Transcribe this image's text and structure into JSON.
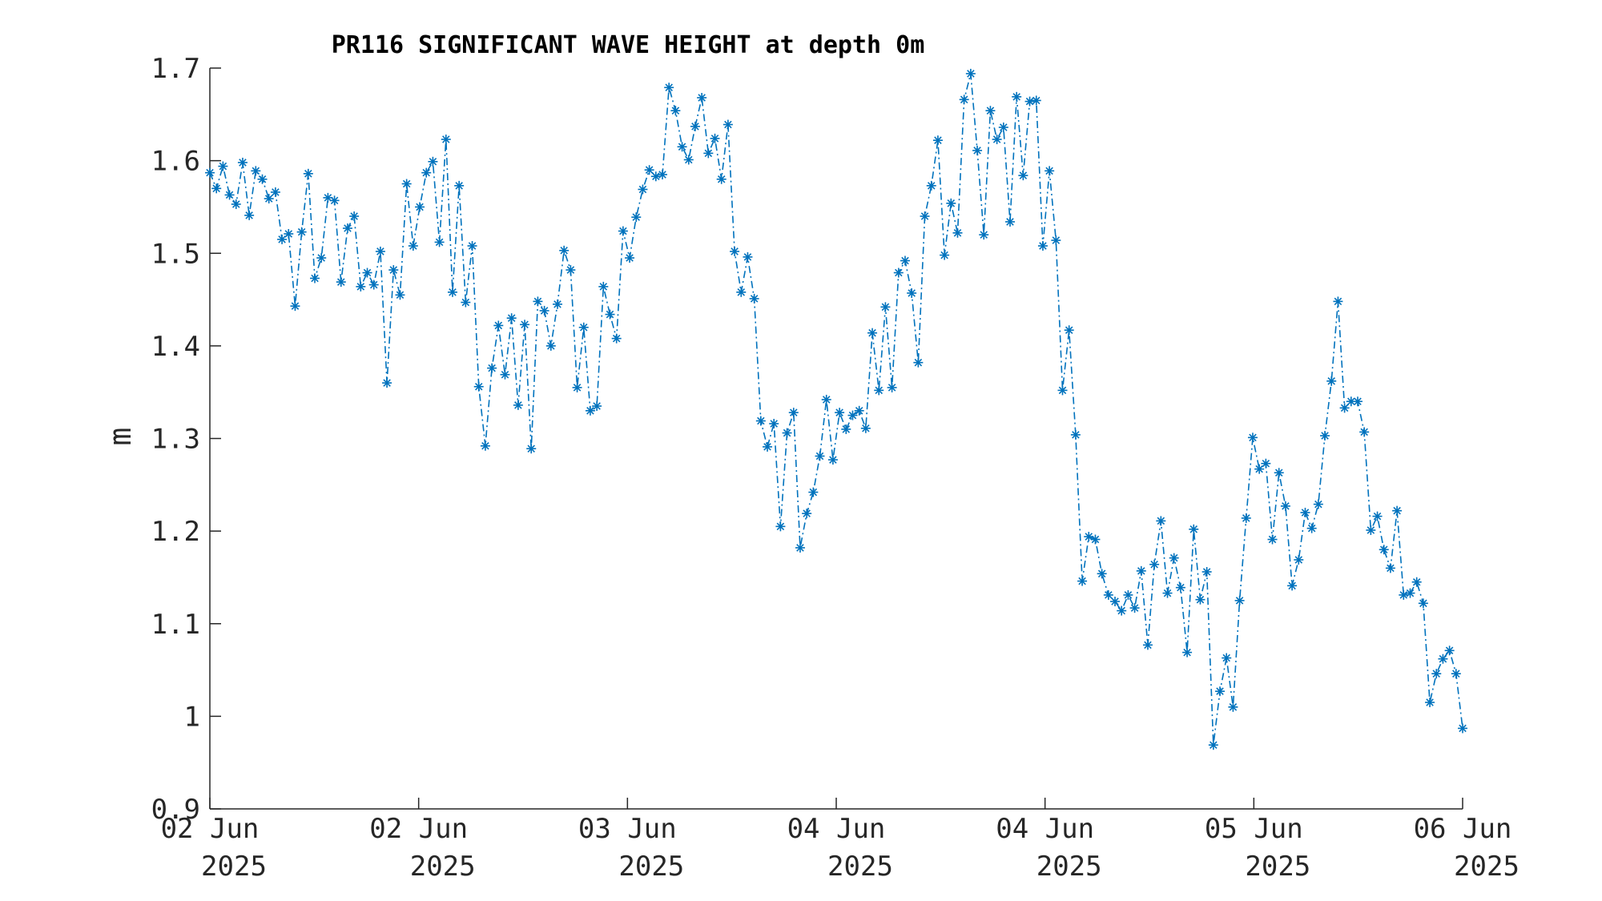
{
  "chart_data": {
    "type": "line",
    "title": "PR116 SIGNIFICANT WAVE HEIGHT at depth 0m",
    "xlabel": "",
    "ylabel": "m",
    "ylim": [
      0.9,
      1.7
    ],
    "yticks": [
      "0.9",
      "1",
      "1.1",
      "1.2",
      "1.3",
      "1.4",
      "1.5",
      "1.6",
      "1.7"
    ],
    "xticks": [
      {
        "day": "02 Jun",
        "year": "2025"
      },
      {
        "day": "02 Jun",
        "year": "2025"
      },
      {
        "day": "03 Jun",
        "year": "2025"
      },
      {
        "day": "04 Jun",
        "year": "2025"
      },
      {
        "day": "04 Jun",
        "year": "2025"
      },
      {
        "day": "05 Jun",
        "year": "2025"
      },
      {
        "day": "06 Jun",
        "year": "2025"
      }
    ],
    "grid": false,
    "marker": "asterisk",
    "line_style": "dash-dot",
    "color": "#0072bd",
    "series": [
      {
        "values": [
          1.587,
          1.57,
          1.594,
          1.563,
          1.553,
          1.598,
          1.541,
          1.589,
          1.58,
          1.559,
          1.566,
          1.515,
          1.521,
          1.443,
          1.523,
          1.586,
          1.473,
          1.495,
          1.56,
          1.557,
          1.469,
          1.527,
          1.54,
          1.464,
          1.479,
          1.466,
          1.502,
          1.36,
          1.482,
          1.455,
          1.575,
          1.508,
          1.55,
          1.587,
          1.599,
          1.512,
          1.623,
          1.458,
          1.573,
          1.447,
          1.508,
          1.356,
          1.292,
          1.376,
          1.422,
          1.369,
          1.43,
          1.336,
          1.423,
          1.289,
          1.448,
          1.438,
          1.4,
          1.445,
          1.503,
          1.482,
          1.355,
          1.42,
          1.33,
          1.335,
          1.464,
          1.434,
          1.408,
          1.524,
          1.495,
          1.539,
          1.569,
          1.59,
          1.583,
          1.585,
          1.679,
          1.654,
          1.615,
          1.601,
          1.637,
          1.668,
          1.608,
          1.624,
          1.58,
          1.639,
          1.502,
          1.458,
          1.496,
          1.451,
          1.319,
          1.291,
          1.316,
          1.205,
          1.306,
          1.328,
          1.182,
          1.219,
          1.242,
          1.281,
          1.342,
          1.277,
          1.328,
          1.31,
          1.325,
          1.33,
          1.311,
          1.414,
          1.352,
          1.442,
          1.355,
          1.479,
          1.492,
          1.457,
          1.382,
          1.54,
          1.573,
          1.622,
          1.498,
          1.554,
          1.522,
          1.666,
          1.694,
          1.611,
          1.52,
          1.654,
          1.623,
          1.636,
          1.534,
          1.669,
          1.584,
          1.664,
          1.665,
          1.508,
          1.589,
          1.514,
          1.352,
          1.417,
          1.304,
          1.146,
          1.194,
          1.191,
          1.154,
          1.131,
          1.124,
          1.114,
          1.131,
          1.117,
          1.157,
          1.077,
          1.164,
          1.211,
          1.133,
          1.171,
          1.139,
          1.069,
          1.202,
          1.126,
          1.156,
          0.969,
          1.027,
          1.063,
          1.01,
          1.125,
          1.214,
          1.301,
          1.267,
          1.273,
          1.191,
          1.263,
          1.227,
          1.141,
          1.169,
          1.22,
          1.203,
          1.229,
          1.303,
          1.362,
          1.448,
          1.333,
          1.34,
          1.34,
          1.307,
          1.201,
          1.216,
          1.18,
          1.16,
          1.222,
          1.131,
          1.133,
          1.145,
          1.122,
          1.015,
          1.046,
          1.062,
          1.071,
          1.046,
          0.987
        ]
      }
    ]
  }
}
